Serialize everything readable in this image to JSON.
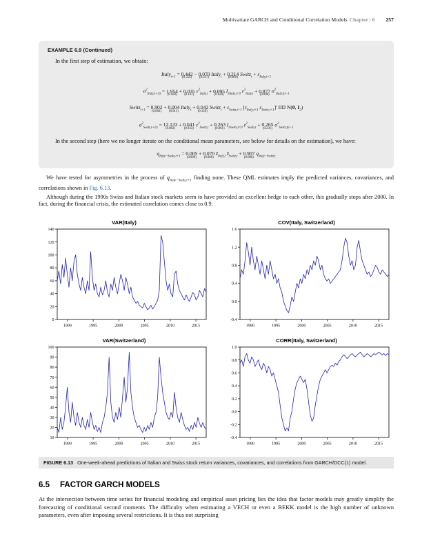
{
  "header": {
    "running_title": "Multivariate GARCH and Conditional Correlation Models",
    "chapter": "Chapter | 6",
    "page_number": "257"
  },
  "example": {
    "title": "EXAMPLE 6.9 (Continued)",
    "para1": "In the first step of estimation, we obtain:",
    "para2": "In the second step (here we no longer iterate on the conditional mean parameters, see below for details on the estimation), we have:"
  },
  "equations_step1": [
    [
      {
        "t": "Italy"
      },
      {
        "s": "t+1"
      },
      {
        "r": " = "
      },
      {
        "v": "0.442",
        "e": "(0.354)"
      },
      {
        "r": " − "
      },
      {
        "v": "0.070",
        "e": "(0.317)"
      },
      {
        "t": " Italy"
      },
      {
        "s": "t"
      },
      {
        "r": " + "
      },
      {
        "v": "0.214",
        "e": "(0.009)"
      },
      {
        "t": " Switz"
      },
      {
        "s": "t"
      },
      {
        "r": " + "
      },
      {
        "t": "ε"
      },
      {
        "s": "Italy,t+1"
      }
    ],
    [
      {
        "t": "σ"
      },
      {
        "p": "2"
      },
      {
        "s": "Italy,t+1|t"
      },
      {
        "r": " = "
      },
      {
        "v": "1.954",
        "e": "(0.168)"
      },
      {
        "r": " + "
      },
      {
        "v": "0.035",
        "e": "(0.141)"
      },
      {
        "t": " ε"
      },
      {
        "p": "2"
      },
      {
        "s": "Italy,t"
      },
      {
        "r": " + "
      },
      {
        "v": "0.095",
        "e": "(0.028)"
      },
      {
        "t": " I"
      },
      {
        "s": "εItaly,t<0"
      },
      {
        "t": " ε"
      },
      {
        "p": "2"
      },
      {
        "s": "Italy,t"
      },
      {
        "r": " + "
      },
      {
        "v": "0.877",
        "e": "(0.006)"
      },
      {
        "t": " σ"
      },
      {
        "p": "2"
      },
      {
        "s": "Italy,t|t−1"
      }
    ],
    [
      {
        "t": "Switz"
      },
      {
        "s": "t+1"
      },
      {
        "r": " = "
      },
      {
        "v": "0.902",
        "e": "(0.002)"
      },
      {
        "r": " + "
      },
      {
        "v": "0.004",
        "e": "(0.911)"
      },
      {
        "t": " Italy"
      },
      {
        "s": "t"
      },
      {
        "r": " + "
      },
      {
        "v": "0.042",
        "e": "(0.150)"
      },
      {
        "t": " Switz"
      },
      {
        "s": "t"
      },
      {
        "r": " + "
      },
      {
        "t": "ε"
      },
      {
        "s": "Switz,t+1"
      },
      {
        "r": "  ["
      },
      {
        "t": "ε"
      },
      {
        "s": "Italy,t+1"
      },
      {
        "r": " "
      },
      {
        "t": "ε"
      },
      {
        "s": "Switz,t+1"
      },
      {
        "r": "]′ IID N("
      },
      {
        "b": "0"
      },
      {
        "r": ", "
      },
      {
        "b": "I"
      },
      {
        "s": "2"
      },
      {
        "r": ")"
      }
    ],
    [
      {
        "t": "σ"
      },
      {
        "p": "2"
      },
      {
        "s": "Switz,t+1|t"
      },
      {
        "r": " = "
      },
      {
        "v": "12.133",
        "e": "(0.002)"
      },
      {
        "r": " + "
      },
      {
        "v": "0.041",
        "e": "(0.933)"
      },
      {
        "t": " ε"
      },
      {
        "p": "2"
      },
      {
        "s": "Switz,t"
      },
      {
        "r": " + "
      },
      {
        "v": "0.263",
        "e": "(0.061)"
      },
      {
        "t": " I"
      },
      {
        "s": "εSwitz,t<0"
      },
      {
        "t": " ε"
      },
      {
        "p": "2"
      },
      {
        "s": "Switz,t"
      },
      {
        "r": " + "
      },
      {
        "v": "0.265",
        "e": "(0.231)"
      },
      {
        "t": " σ"
      },
      {
        "p": "2"
      },
      {
        "s": "Switz,t|t−1"
      }
    ]
  ],
  "equations_step2": [
    [
      {
        "t": "q"
      },
      {
        "s": "Italy−Switz,t+1"
      },
      {
        "r": " = "
      },
      {
        "v": "0.005",
        "e": "(0.000)"
      },
      {
        "r": " + "
      },
      {
        "v": "0.070",
        "e": "(0.000)"
      },
      {
        "t": " z̄"
      },
      {
        "s": "Italy,t"
      },
      {
        "t": " z̄"
      },
      {
        "s": "Switz,t"
      },
      {
        "r": " + "
      },
      {
        "v": "0.907",
        "e": "(0.000)"
      },
      {
        "t": " q"
      },
      {
        "s": "Italy−Switz,t"
      }
    ]
  ],
  "body": {
    "para3_pre": "We have tested for asymmetries in the process of ",
    "para3_q": "q",
    "para3_sub": "Italy−Switz,t+1",
    "para3_mid": " finding none. These QML estimates imply the predicted variances, covariances, and correlations shown in ",
    "para3_link": "Fig. 6.13",
    "para3_end": ".",
    "para4": "Although during the 1990s Swiss and Italian stock markets seem to have provided an excellent hedge to each other, this gradually stops after 2000. In fact, during the financial crisis, the estimated correlation comes close to 0.9."
  },
  "figure_caption": {
    "label": "FIGURE 6.13",
    "text": "One-week-ahead predictions of Italian and Swiss stock return variances, covariances, and correlations from GARCH/DCC(1) model."
  },
  "section": {
    "number": "6.5",
    "title": "FACTOR GARCH MODELS",
    "para": "At the intersection between time series for financial modeling and empirical asset pricing lies the idea that factor models may greatly simplify the forecasting of conditional second moments. The difficulty when estimating a VECH or even a BEKK model is the high number of unknown parameters, even after imposing several restrictions. It is thus not surprising"
  },
  "chart_data": [
    {
      "type": "line",
      "title": "VAR(Italy)",
      "x_range": [
        1988,
        2017
      ],
      "ylim": [
        0,
        140
      ],
      "yticks": [
        0,
        20,
        40,
        60,
        80,
        100,
        120,
        140
      ],
      "ytick_labels": [
        "0",
        "20",
        "40",
        "60",
        "80",
        "100",
        "120",
        "140"
      ],
      "xticks": [
        1990,
        1995,
        2000,
        2005,
        2010,
        2015
      ],
      "line_color": "#2222b2",
      "values": [
        60,
        75,
        55,
        85,
        65,
        95,
        70,
        50,
        80,
        60,
        90,
        100,
        70,
        55,
        45,
        65,
        50,
        40,
        60,
        45,
        105,
        65,
        45,
        55,
        40,
        35,
        50,
        38,
        45,
        60,
        42,
        35,
        55,
        45,
        65,
        50,
        40,
        55,
        70,
        60,
        45,
        65,
        55,
        40,
        50,
        35,
        30,
        25,
        28,
        22,
        20,
        18,
        25,
        20,
        15,
        18,
        22,
        16,
        20,
        25,
        30,
        45,
        130,
        120,
        90,
        60,
        45,
        55,
        40,
        35,
        70,
        75,
        55,
        45,
        40,
        35,
        30,
        38,
        32,
        28,
        35,
        42,
        38,
        30,
        35,
        45,
        40,
        35,
        48,
        42
      ]
    },
    {
      "type": "line",
      "title": "COV(Italy, Switzerland)",
      "x_range": [
        1988,
        2017
      ],
      "ylim": [
        -0.4,
        1.6
      ],
      "yticks": [
        -0.4,
        0,
        0.4,
        0.8,
        1.2,
        1.6
      ],
      "ytick_labels": [
        "-0.4",
        "0.0",
        "0.4",
        "0.8",
        "1.2",
        "1.6"
      ],
      "xticks": [
        1990,
        1995,
        2000,
        2005,
        2010,
        2015
      ],
      "line_color": "#2222b2",
      "values": [
        0.5,
        0.7,
        0.6,
        0.9,
        1.3,
        1.1,
        0.8,
        1.2,
        0.9,
        0.7,
        1.0,
        0.8,
        0.6,
        0.9,
        0.7,
        0.5,
        0.8,
        0.6,
        0.9,
        0.7,
        0.5,
        0.6,
        0.4,
        0.5,
        0.3,
        0.2,
        0.0,
        -0.1,
        -0.2,
        -0.25,
        -0.1,
        0.1,
        0.0,
        0.2,
        0.4,
        0.3,
        0.5,
        0.4,
        0.6,
        0.5,
        0.7,
        0.6,
        0.8,
        0.7,
        0.9,
        0.8,
        1.0,
        0.9,
        0.7,
        0.8,
        0.6,
        0.5,
        0.45,
        0.5,
        0.4,
        0.45,
        0.5,
        0.55,
        0.6,
        0.65,
        0.7,
        0.9,
        1.2,
        1.4,
        1.3,
        1.0,
        0.8,
        0.9,
        0.7,
        0.8,
        1.2,
        1.35,
        1.1,
        0.9,
        0.8,
        0.7,
        0.6,
        0.65,
        0.55,
        0.6,
        0.7,
        0.8,
        0.75,
        0.65,
        0.6,
        0.7,
        0.65,
        0.6,
        0.55,
        0.6
      ]
    },
    {
      "type": "line",
      "title": "VAR(Switzerland)",
      "x_range": [
        1988,
        2017
      ],
      "ylim": [
        10,
        100
      ],
      "yticks": [
        10,
        20,
        30,
        40,
        50,
        60,
        70,
        80,
        90,
        100
      ],
      "ytick_labels": [
        "10",
        "20",
        "30",
        "40",
        "50",
        "60",
        "70",
        "80",
        "90",
        "100"
      ],
      "xticks": [
        1990,
        1995,
        2000,
        2005,
        2010,
        2015
      ],
      "line_color": "#2222b2",
      "values": [
        20,
        15,
        30,
        18,
        25,
        40,
        60,
        35,
        25,
        45,
        30,
        22,
        35,
        25,
        20,
        30,
        22,
        18,
        28,
        20,
        35,
        25,
        18,
        22,
        16,
        20,
        15,
        25,
        30,
        40,
        55,
        90,
        45,
        30,
        25,
        35,
        28,
        40,
        30,
        50,
        70,
        45,
        60,
        95,
        55,
        40,
        30,
        25,
        20,
        22,
        18,
        15,
        20,
        16,
        22,
        18,
        25,
        20,
        30,
        35,
        50,
        90,
        70,
        55,
        45,
        35,
        30,
        28,
        35,
        30,
        55,
        40,
        30,
        25,
        35,
        28,
        22,
        18,
        20,
        16,
        22,
        18,
        25,
        20,
        30,
        24,
        20,
        25,
        20,
        18
      ]
    },
    {
      "type": "line",
      "title": "CORR(Italy, Switzerland)",
      "x_range": [
        1988,
        2017
      ],
      "ylim": [
        -0.4,
        1.0
      ],
      "yticks": [
        -0.4,
        -0.2,
        0,
        0.2,
        0.4,
        0.6,
        0.8,
        1.0
      ],
      "ytick_labels": [
        "-0.4",
        "-0.2",
        "0.0",
        "0.2",
        "0.4",
        "0.6",
        "0.8",
        "1.0"
      ],
      "xticks": [
        1990,
        1995,
        2000,
        2005,
        2010,
        2015
      ],
      "line_color": "#2222b2",
      "values": [
        0.75,
        0.8,
        0.7,
        0.85,
        0.9,
        0.8,
        0.75,
        0.85,
        0.8,
        0.7,
        0.75,
        0.8,
        0.7,
        0.65,
        0.75,
        0.7,
        0.6,
        0.7,
        0.65,
        0.55,
        0.6,
        0.5,
        0.4,
        0.3,
        0.1,
        -0.1,
        -0.2,
        -0.3,
        -0.25,
        -0.3,
        -0.1,
        0.0,
        0.2,
        0.35,
        0.45,
        0.5,
        0.55,
        0.5,
        0.45,
        0.5,
        0.35,
        0.15,
        -0.05,
        -0.15,
        -0.1,
        0.1,
        0.25,
        0.4,
        0.5,
        0.55,
        0.6,
        0.65,
        0.6,
        0.65,
        0.7,
        0.72,
        0.7,
        0.75,
        0.72,
        0.78,
        0.8,
        0.85,
        0.88,
        0.85,
        0.82,
        0.85,
        0.88,
        0.9,
        0.87,
        0.85,
        0.88,
        0.9,
        0.92,
        0.88,
        0.85,
        0.87,
        0.9,
        0.88,
        0.85,
        0.87,
        0.9,
        0.88,
        0.9,
        0.92,
        0.9,
        0.88,
        0.9,
        0.87,
        0.9,
        0.88
      ]
    }
  ]
}
